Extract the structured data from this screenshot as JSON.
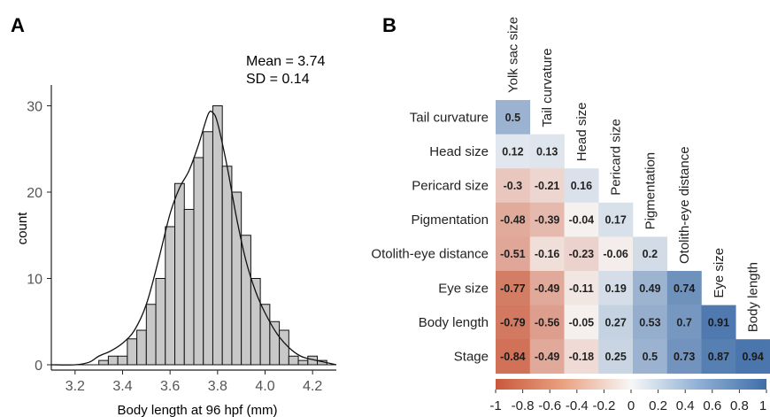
{
  "panels": [
    {
      "letter": "A",
      "chart_data": {
        "type": "bar",
        "subtype": "histogram-with-density",
        "stats": [
          "Mean = 3.74",
          "SD = 0.14"
        ],
        "xlabel": "Body length at 96 hpf (mm)",
        "ylabel": "count",
        "xlim": [
          3.1,
          4.3
        ],
        "ylim": [
          0,
          32
        ],
        "xticks": [
          3.2,
          3.4,
          3.6,
          3.8,
          4.0,
          4.2
        ],
        "xtick_labels": [
          "3.2",
          "3.4",
          "3.6",
          "3.8",
          "4.0",
          "4.2"
        ],
        "yticks": [
          0,
          10,
          20,
          30
        ],
        "ytick_labels": [
          "0",
          "10",
          "20",
          "30"
        ],
        "bin_width": 0.04,
        "bins": [
          {
            "x0": 3.3,
            "x1": 3.34,
            "count": 0.5
          },
          {
            "x0": 3.34,
            "x1": 3.38,
            "count": 1
          },
          {
            "x0": 3.38,
            "x1": 3.42,
            "count": 1
          },
          {
            "x0": 3.42,
            "x1": 3.46,
            "count": 3
          },
          {
            "x0": 3.46,
            "x1": 3.5,
            "count": 4
          },
          {
            "x0": 3.5,
            "x1": 3.54,
            "count": 7
          },
          {
            "x0": 3.54,
            "x1": 3.58,
            "count": 10
          },
          {
            "x0": 3.58,
            "x1": 3.62,
            "count": 16
          },
          {
            "x0": 3.62,
            "x1": 3.66,
            "count": 21
          },
          {
            "x0": 3.66,
            "x1": 3.7,
            "count": 18
          },
          {
            "x0": 3.7,
            "x1": 3.74,
            "count": 24
          },
          {
            "x0": 3.74,
            "x1": 3.78,
            "count": 27
          },
          {
            "x0": 3.78,
            "x1": 3.82,
            "count": 30
          },
          {
            "x0": 3.82,
            "x1": 3.86,
            "count": 23
          },
          {
            "x0": 3.86,
            "x1": 3.9,
            "count": 20
          },
          {
            "x0": 3.9,
            "x1": 3.94,
            "count": 15
          },
          {
            "x0": 3.94,
            "x1": 3.98,
            "count": 10
          },
          {
            "x0": 3.98,
            "x1": 4.02,
            "count": 7
          },
          {
            "x0": 4.02,
            "x1": 4.06,
            "count": 5
          },
          {
            "x0": 4.06,
            "x1": 4.1,
            "count": 4
          },
          {
            "x0": 4.1,
            "x1": 4.14,
            "count": 1
          },
          {
            "x0": 4.14,
            "x1": 4.18,
            "count": 0.5
          },
          {
            "x0": 4.18,
            "x1": 4.22,
            "count": 1
          },
          {
            "x0": 4.22,
            "x1": 4.26,
            "count": 0.5
          }
        ],
        "density_curve": {
          "x": [
            3.1,
            3.2,
            3.26,
            3.3,
            3.35,
            3.4,
            3.45,
            3.5,
            3.55,
            3.6,
            3.64,
            3.68,
            3.72,
            3.76,
            3.78,
            3.8,
            3.84,
            3.88,
            3.92,
            3.96,
            4.0,
            4.05,
            4.1,
            4.15,
            4.2,
            4.25,
            4.3
          ],
          "y": [
            0,
            0,
            0.3,
            1.0,
            1.6,
            2.5,
            4.0,
            7.0,
            12.0,
            17.5,
            20.5,
            22.5,
            25.5,
            29.0,
            29.2,
            28.0,
            23.0,
            17.0,
            12.0,
            8.5,
            6.0,
            3.6,
            2.0,
            1.0,
            0.6,
            0.3,
            0
          ]
        },
        "colors": {
          "bar_fill": "#c8c8c8",
          "bar_stroke": "#111111",
          "curve": "#111111"
        }
      }
    },
    {
      "letter": "B",
      "chart_data": {
        "type": "heatmap",
        "subtype": "lower-triangle-correlation",
        "columns": [
          "Yolk sac size",
          "Tail curvature",
          "Head size",
          "Pericard size",
          "Pigmentation",
          "Otolith-eye distance",
          "Eye size",
          "Body length"
        ],
        "rows": [
          "Tail curvature",
          "Head size",
          "Pericard size",
          "Pigmentation",
          "Otolith-eye distance",
          "Eye size",
          "Body length",
          "Stage"
        ],
        "values": [
          [
            0.5
          ],
          [
            0.12,
            0.13
          ],
          [
            -0.3,
            -0.21,
            0.16
          ],
          [
            -0.48,
            -0.39,
            -0.04,
            0.17
          ],
          [
            -0.51,
            -0.16,
            -0.23,
            -0.06,
            0.2
          ],
          [
            -0.77,
            -0.49,
            -0.11,
            0.19,
            0.49,
            0.74
          ],
          [
            -0.79,
            -0.56,
            -0.05,
            0.27,
            0.53,
            0.7,
            0.91
          ],
          [
            -0.84,
            -0.49,
            -0.18,
            0.25,
            0.5,
            0.73,
            0.87,
            0.94
          ]
        ],
        "value_labels": [
          [
            "0.5"
          ],
          [
            "0.12",
            "0.13"
          ],
          [
            "-0.3",
            "-0.21",
            "0.16"
          ],
          [
            "-0.48",
            "-0.39",
            "-0.04",
            "0.17"
          ],
          [
            "-0.51",
            "-0.16",
            "-0.23",
            "-0.06",
            "0.2"
          ],
          [
            "-0.77",
            "-0.49",
            "-0.11",
            "0.19",
            "0.49",
            "0.74"
          ],
          [
            "-0.79",
            "-0.56",
            "-0.05",
            "0.27",
            "0.53",
            "0.7",
            "0.91"
          ],
          [
            "-0.84",
            "-0.49",
            "-0.18",
            "0.25",
            "0.5",
            "0.73",
            "0.87",
            "0.94"
          ]
        ],
        "colorbar": {
          "range": [
            -1,
            1
          ],
          "ticks": [
            -1,
            -0.8,
            -0.6,
            -0.4,
            -0.2,
            0,
            0.2,
            0.4,
            0.6,
            0.8,
            1
          ],
          "tick_labels": [
            "-1",
            "-0.8",
            "-0.6",
            "-0.4",
            "-0.2",
            "0",
            "0.2",
            "0.4",
            "0.6",
            "0.8",
            "1"
          ],
          "colors": {
            "negative": "#c9583a",
            "zero": "#f7f7f7",
            "positive": "#3f6ea8"
          }
        }
      }
    }
  ]
}
